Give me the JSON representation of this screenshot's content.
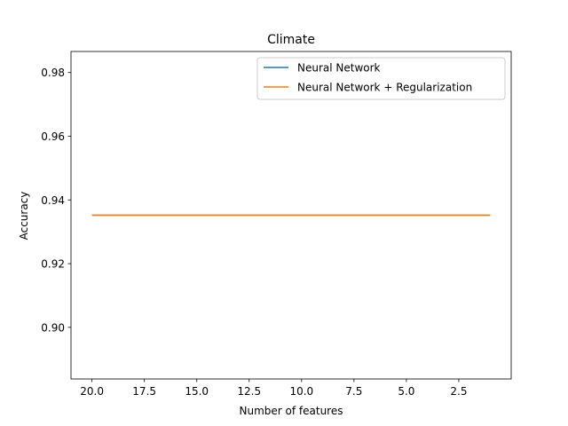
{
  "chart_data": {
    "type": "line",
    "title": "Climate",
    "xlabel": "Number of features",
    "ylabel": "Accuracy",
    "x_inverted": true,
    "xlim": [
      21.0,
      0.0
    ],
    "ylim": [
      0.8838,
      0.9866
    ],
    "xticks": [
      20.0,
      17.5,
      15.0,
      12.5,
      10.0,
      7.5,
      5.0,
      2.5
    ],
    "xtick_labels": [
      "20.0",
      "17.5",
      "15.0",
      "12.5",
      "10.0",
      "7.5",
      "5.0",
      "2.5"
    ],
    "yticks": [
      0.9,
      0.92,
      0.94,
      0.96,
      0.98
    ],
    "ytick_labels": [
      "0.90",
      "0.92",
      "0.94",
      "0.96",
      "0.98"
    ],
    "grid": false,
    "legend_position": "top-right",
    "series": [
      {
        "name": "Neural Network",
        "color": "#1f77b4",
        "x": [
          20,
          19,
          18,
          17,
          16,
          15,
          14,
          13,
          12,
          11,
          10,
          9,
          8,
          7,
          6,
          5,
          4,
          3,
          2,
          1
        ],
        "y": [
          0.9352,
          0.9352,
          0.9352,
          0.9352,
          0.9352,
          0.9352,
          0.9352,
          0.9352,
          0.9352,
          0.9352,
          0.9352,
          0.9352,
          0.9352,
          0.9352,
          0.9352,
          0.9352,
          0.9352,
          0.9352,
          0.9352,
          0.9352
        ]
      },
      {
        "name": "Neural Network + Regularization",
        "color": "#ff7f0e",
        "x": [
          20,
          19,
          18,
          17,
          16,
          15,
          14,
          13,
          12,
          11,
          10,
          9,
          8,
          7,
          6,
          5,
          4,
          3,
          2,
          1
        ],
        "y": [
          0.9352,
          0.9352,
          0.9352,
          0.9352,
          0.9352,
          0.9352,
          0.9352,
          0.9352,
          0.9352,
          0.9352,
          0.9352,
          0.9352,
          0.9352,
          0.9352,
          0.9352,
          0.9352,
          0.9352,
          0.9352,
          0.9352,
          0.9352
        ]
      }
    ]
  }
}
